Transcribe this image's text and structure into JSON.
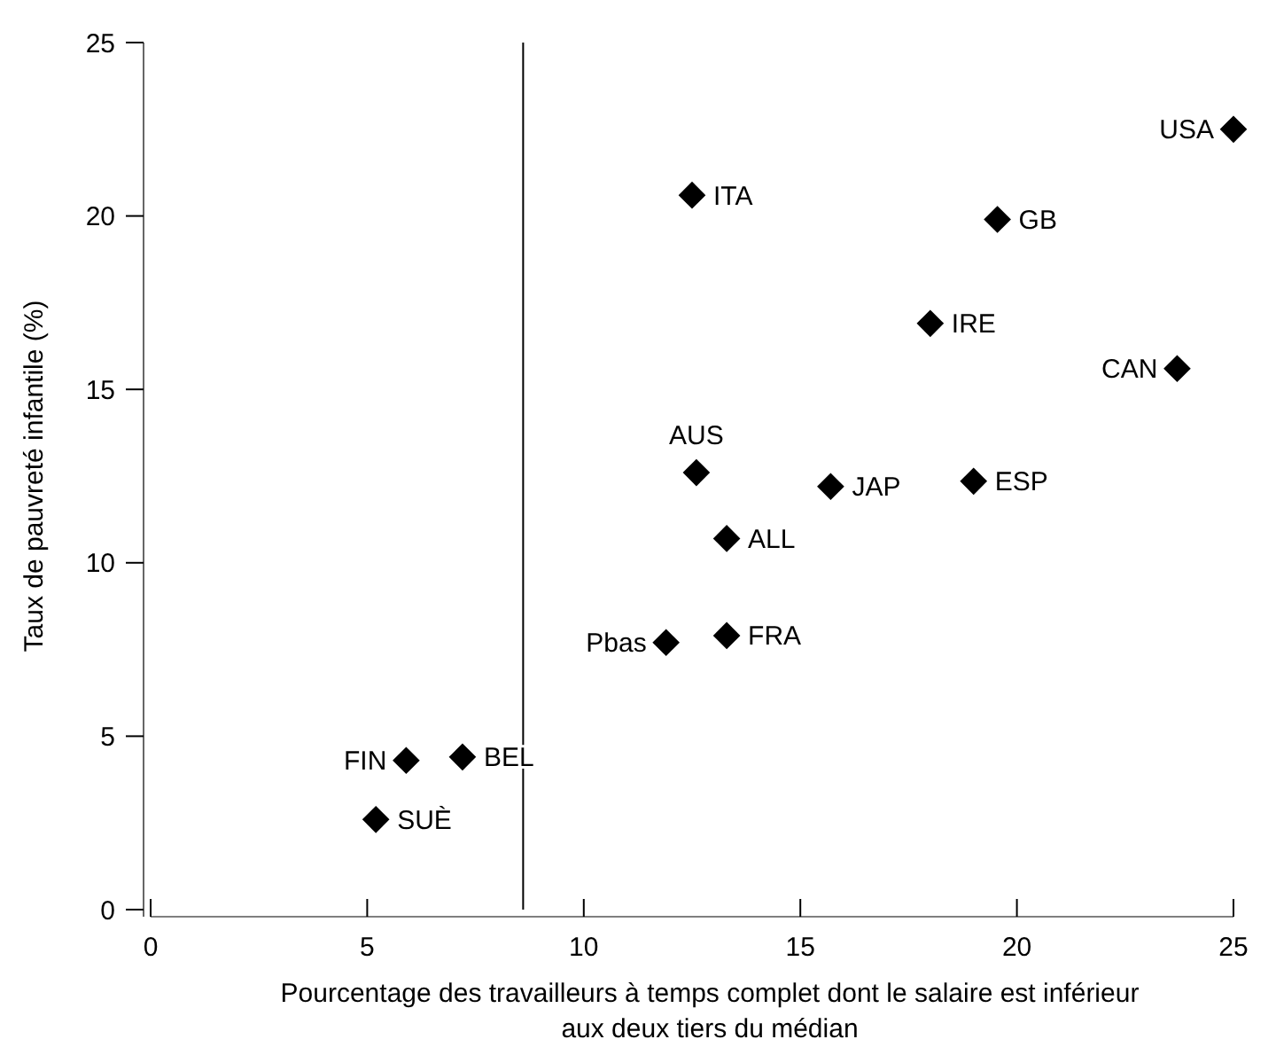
{
  "chart_data": {
    "type": "scatter",
    "xlabel": "Pourcentage des travailleurs à temps complet dont le salaire est inférieur aux deux tiers du médian",
    "ylabel": "Taux de pauvreté infantile (%)",
    "x": [
      25.0,
      12.5,
      19.55,
      18.0,
      23.7,
      12.6,
      15.7,
      19.0,
      13.3,
      13.3,
      11.9,
      5.9,
      7.2,
      5.2
    ],
    "series": [
      {
        "color": "#000000",
        "values": [
          22.5,
          20.6,
          19.9,
          16.9,
          15.6,
          12.6,
          12.2,
          12.35,
          10.7,
          7.9,
          7.7,
          4.3,
          4.4,
          2.6
        ]
      }
    ],
    "annotations": [
      {
        "text": "USA",
        "x": 25.0,
        "y": 22.5
      },
      {
        "text": "ITA",
        "x": 12.5,
        "y": 20.6
      },
      {
        "text": "GB",
        "x": 19.55,
        "y": 19.9
      },
      {
        "text": "IRE",
        "x": 18.0,
        "y": 16.9
      },
      {
        "text": "CAN",
        "x": 23.7,
        "y": 15.6
      },
      {
        "text": "AUS",
        "x": 12.6,
        "y": 12.6
      },
      {
        "text": "JAP",
        "x": 15.7,
        "y": 12.2
      },
      {
        "text": "ESP",
        "x": 19.0,
        "y": 12.35
      },
      {
        "text": "ALL",
        "x": 13.3,
        "y": 10.7
      },
      {
        "text": "FRA",
        "x": 13.3,
        "y": 7.9
      },
      {
        "text": "Pbas",
        "x": 11.9,
        "y": 7.7
      },
      {
        "text": "FIN",
        "x": 5.9,
        "y": 4.3
      },
      {
        "text": "BEL",
        "x": 7.2,
        "y": 4.4
      },
      {
        "text": "SUÈ",
        "x": 5.2,
        "y": 2.6
      }
    ],
    "ref_lines": [
      {
        "axis": "x",
        "value": 8.6,
        "color": "#000000"
      }
    ],
    "xlim": [
      0,
      25
    ],
    "ylim": [
      0,
      25
    ],
    "xticks": [
      0,
      5,
      10,
      15,
      20,
      25
    ],
    "yticks": [
      0,
      5,
      10,
      15,
      20,
      25
    ],
    "marker": "diamond"
  }
}
